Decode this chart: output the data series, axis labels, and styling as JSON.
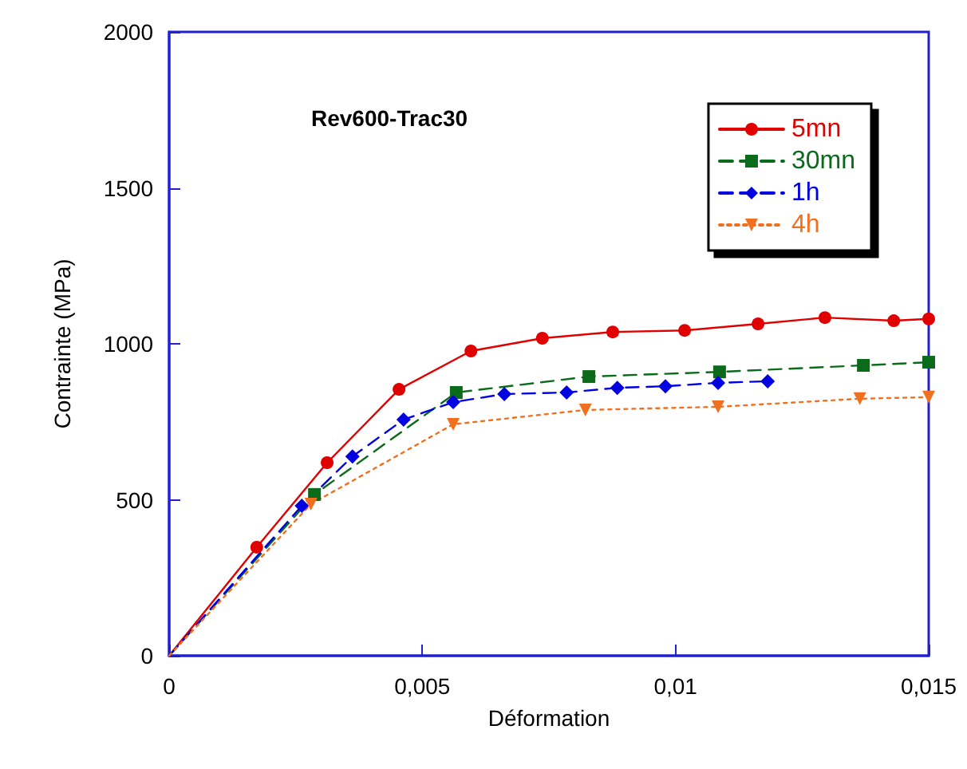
{
  "chart_data": {
    "type": "line",
    "title": "Rev600-Trac30",
    "xlabel": "Déformation",
    "ylabel": "Contrainte (MPa)",
    "xlim": [
      0,
      0.015
    ],
    "xticks": [
      {
        "value": 0,
        "label": "0"
      },
      {
        "value": 0.005,
        "label": "0,005"
      },
      {
        "value": 0.01,
        "label": "0,01"
      },
      {
        "value": 0.015,
        "label": "0,015"
      }
    ],
    "ylim": [
      0,
      2000
    ],
    "yticks": [
      0,
      500,
      1000,
      1500,
      2000
    ],
    "grid": false,
    "legend": "top right",
    "series": [
      {
        "name": "5mn",
        "color": "#e00000",
        "marker": "circle",
        "line_style": "solid",
        "x": [
          0,
          0.00173,
          0.00312,
          0.00454,
          0.00596,
          0.00737,
          0.00876,
          0.01018,
          0.01163,
          0.01295,
          0.01431,
          0.015
        ],
        "values": [
          0,
          348,
          619,
          854,
          977,
          1018,
          1038,
          1043,
          1064,
          1084,
          1074,
          1080
        ]
      },
      {
        "name": "30mn",
        "color": "#0a6b1a",
        "marker": "square",
        "line_style": "dashed",
        "x": [
          0,
          0.00287,
          0.00567,
          0.00829,
          0.01087,
          0.01371,
          0.015
        ],
        "values": [
          0,
          517,
          844,
          895,
          910,
          931,
          941
        ]
      },
      {
        "name": "1h",
        "color": "#0000e0",
        "marker": "diamond",
        "line_style": "dashed",
        "x": [
          0,
          0.00262,
          0.00362,
          0.00463,
          0.00561,
          0.00662,
          0.00785,
          0.00885,
          0.0098,
          0.01084,
          0.01182
        ],
        "values": [
          0,
          481,
          639,
          757,
          813,
          839,
          844,
          859,
          864,
          875,
          880
        ]
      },
      {
        "name": "4h",
        "color": "#f07020",
        "marker": "triangle",
        "line_style": "dotted",
        "x": [
          0,
          0.0028,
          0.00561,
          0.00822,
          0.01084,
          0.01364,
          0.015
        ],
        "values": [
          0,
          486,
          742,
          788,
          798,
          824,
          829
        ]
      }
    ]
  }
}
